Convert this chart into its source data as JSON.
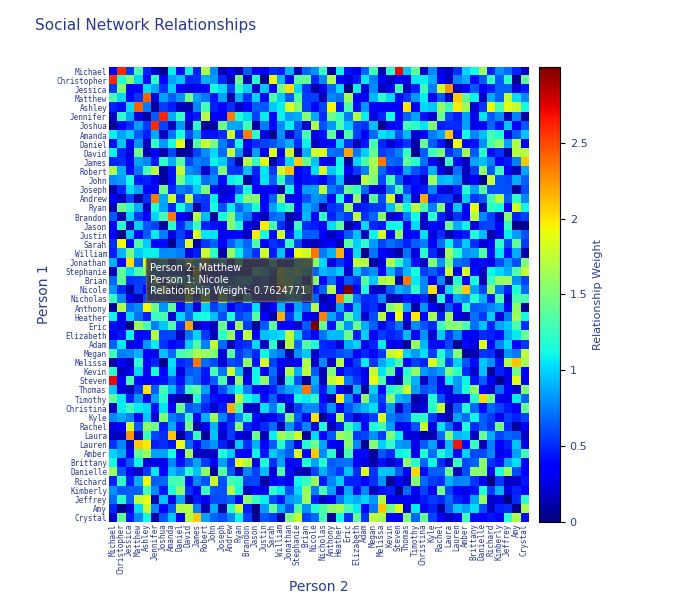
{
  "names": [
    "Michael",
    "Christopher",
    "Jessica",
    "Matthew",
    "Ashley",
    "Jennifer",
    "Joshua",
    "Amanda",
    "Daniel",
    "David",
    "James",
    "Robert",
    "John",
    "Joseph",
    "Andrew",
    "Ryan",
    "Brandon",
    "Jason",
    "Justin",
    "Sarah",
    "William",
    "Jonathan",
    "Stephanie",
    "Brian",
    "Nicole",
    "Nicholas",
    "Anthony",
    "Heather",
    "Eric",
    "Elizabeth",
    "Adam",
    "Megan",
    "Melissa",
    "Kevin",
    "Steven",
    "Thomas",
    "Timothy",
    "Christina",
    "Kyle",
    "Rachel",
    "Laura",
    "Lauren",
    "Amber",
    "Brittany",
    "Danielle",
    "Richard",
    "Kimberly",
    "Jeffrey",
    "Amy",
    "Crystal"
  ],
  "title": "Social Network Relationships",
  "xlabel": "Person 2",
  "ylabel": "Person 1",
  "colorbar_label": "Relationship Weight",
  "vmin": 0,
  "vmax": 3,
  "seed": 42,
  "tooltip_person2": "Matthew",
  "tooltip_person1": "Nicole",
  "tooltip_weight": "0.7624771",
  "bg_color": "#ffffff",
  "title_fontsize": 11,
  "axis_label_fontsize": 10,
  "tick_fontsize": 5.5,
  "colorbar_fontsize": 8,
  "tick_color": "#2b3a8f",
  "label_color": "#2b3a8f",
  "title_color": "#2b3a8f"
}
